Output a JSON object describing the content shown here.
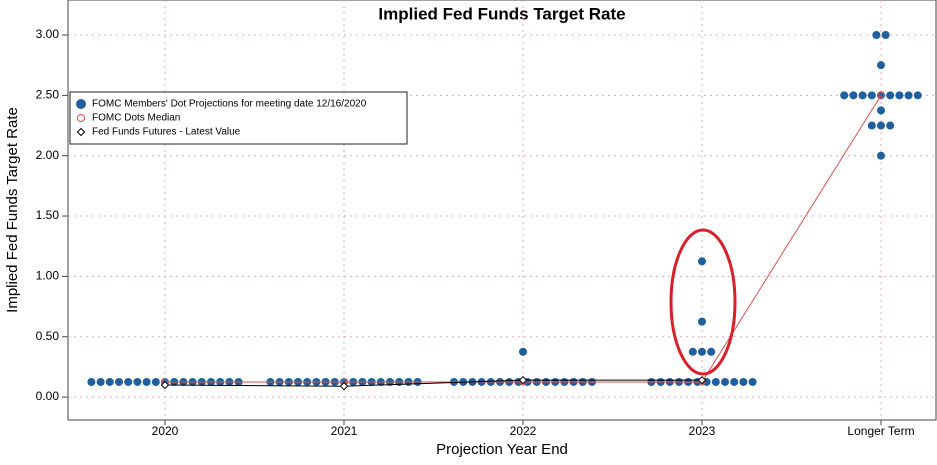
{
  "chart_data": {
    "type": "dot",
    "title": "Implied Fed Funds Target Rate",
    "x_label": "Projection Year End",
    "y_label": "Implied Fed Funds Target Rate",
    "categories": [
      "2020",
      "2021",
      "2022",
      "2023",
      "Longer Term"
    ],
    "ylim": [
      -0.19,
      3.29
    ],
    "yticks": [
      {
        "value": 0,
        "label": "0.00"
      },
      {
        "value": 0.5,
        "label": "0.50"
      },
      {
        "value": 1,
        "label": "1.00"
      },
      {
        "value": 1.5,
        "label": "1.50"
      },
      {
        "value": 2,
        "label": "2.00"
      },
      {
        "value": 2.5,
        "label": "2.50"
      },
      {
        "value": 3,
        "label": "3.00"
      }
    ],
    "grid": true,
    "series": [
      {
        "name": "FOMC Members' Dot Projections for meeting date 12/16/2020",
        "color": "#1f5fa0",
        "kind": "dots",
        "values": [
          [
            0.125,
            0.125,
            0.125,
            0.125,
            0.125,
            0.125,
            0.125,
            0.125,
            0.125,
            0.125,
            0.125,
            0.125,
            0.125,
            0.125,
            0.125,
            0.125,
            0.125
          ],
          [
            0.125,
            0.125,
            0.125,
            0.125,
            0.125,
            0.125,
            0.125,
            0.125,
            0.125,
            0.125,
            0.125,
            0.125,
            0.125,
            0.125,
            0.125,
            0.125,
            0.125
          ],
          [
            0.125,
            0.125,
            0.125,
            0.125,
            0.125,
            0.125,
            0.125,
            0.125,
            0.125,
            0.125,
            0.125,
            0.125,
            0.125,
            0.125,
            0.125,
            0.125,
            0.375
          ],
          [
            0.125,
            0.125,
            0.125,
            0.125,
            0.125,
            0.125,
            0.125,
            0.125,
            0.125,
            0.125,
            0.125,
            0.125,
            0.375,
            0.375,
            0.375,
            0.625,
            1.125
          ],
          [
            2.0,
            2.25,
            2.25,
            2.25,
            2.375,
            2.5,
            2.5,
            2.5,
            2.5,
            2.5,
            2.5,
            2.5,
            2.5,
            2.5,
            2.75,
            3.0,
            3.0
          ]
        ]
      },
      {
        "name": "FOMC Dots Median",
        "color": "#d9534f",
        "kind": "median",
        "values": [
          0.125,
          0.125,
          0.125,
          0.125,
          2.5
        ]
      },
      {
        "name": "Fed Funds Futures - Latest Value",
        "color": "#000000",
        "kind": "futures",
        "values": [
          0.1,
          0.09,
          0.14,
          0.14,
          null
        ]
      }
    ]
  }
}
